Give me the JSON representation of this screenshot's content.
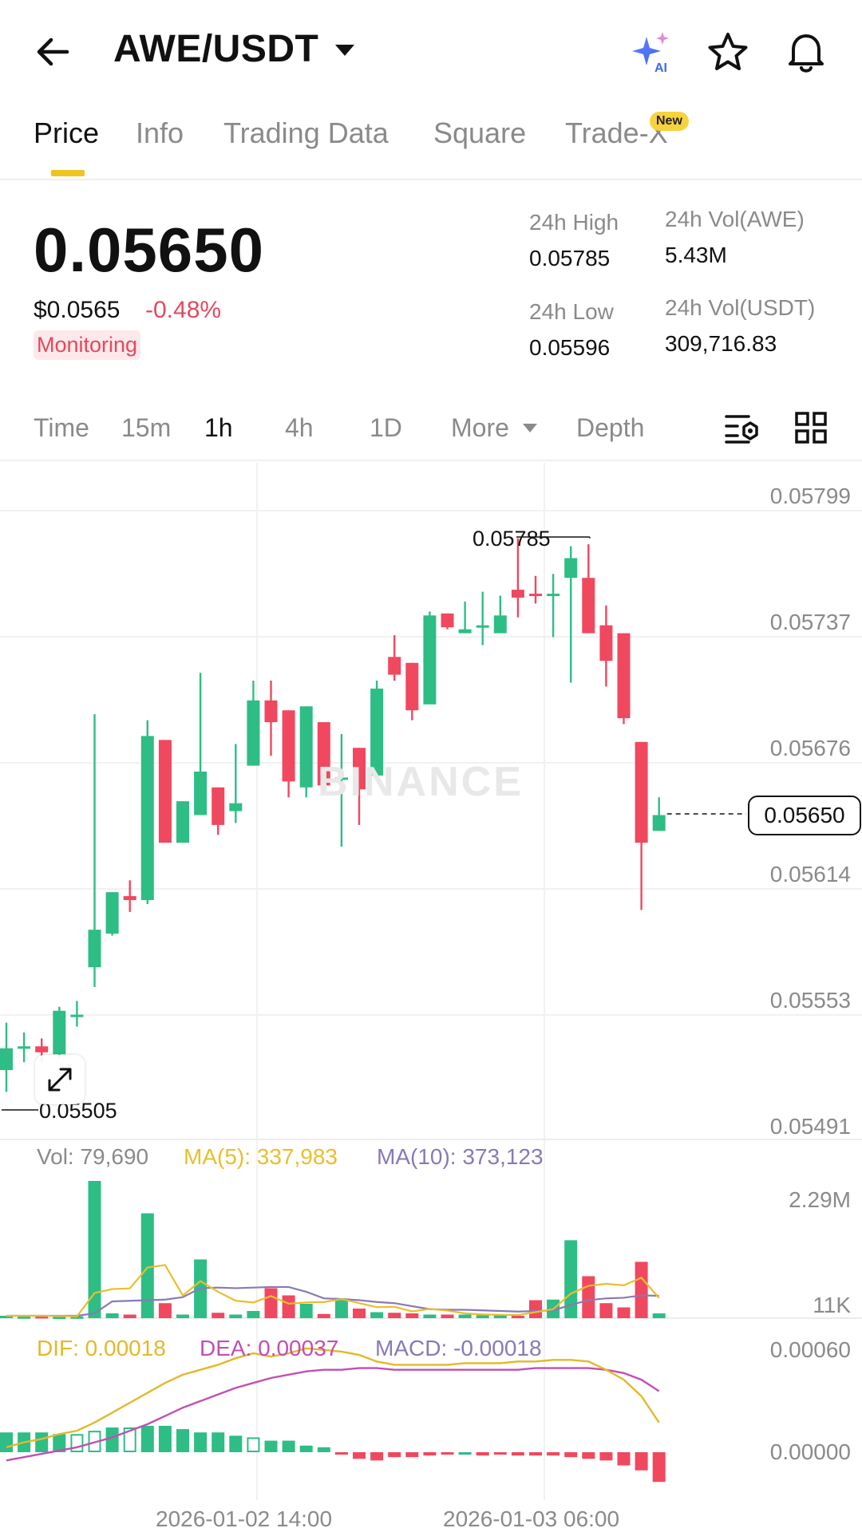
{
  "header": {
    "pair": "AWE/USDT",
    "icons": [
      "back-arrow-icon",
      "caret-down-icon",
      "ai-sparkle-icon",
      "star-icon",
      "bell-icon"
    ]
  },
  "tabs": [
    {
      "label": "Price",
      "active": true
    },
    {
      "label": "Info",
      "active": false
    },
    {
      "label": "Trading Data",
      "active": false
    },
    {
      "label": "Square",
      "active": false
    },
    {
      "label": "Trade-X",
      "active": false,
      "badge": "New"
    }
  ],
  "price": {
    "last": "0.05650",
    "usd": "$0.0565",
    "change": "-0.48%",
    "tag": "Monitoring",
    "high_label": "24h High",
    "high": "0.05785",
    "low_label": "24h Low",
    "low": "0.05596",
    "vol_awe_label": "24h Vol(AWE)",
    "vol_awe": "5.43M",
    "vol_usdt_label": "24h Vol(USDT)",
    "vol_usdt": "309,716.83"
  },
  "intervals": {
    "items": [
      "Time",
      "15m",
      "1h",
      "4h",
      "1D",
      "More",
      "Depth"
    ],
    "active": "1h"
  },
  "chart_data": {
    "type": "candlestick",
    "interval": "1h",
    "y_ticks": [
      "0.05799",
      "0.05737",
      "0.05676",
      "0.05614",
      "0.05553",
      "0.05491"
    ],
    "ylim": [
      0.05491,
      0.05799
    ],
    "high_marker": "0.05785",
    "low_marker": "0.05505",
    "current_price": "0.05650",
    "watermark": "BINANCE",
    "candles": [
      [
        0.05516,
        0.05527,
        0.05505,
        0.0554
      ],
      [
        0.05527,
        0.05528,
        0.0552,
        0.05535
      ],
      [
        0.05528,
        0.05525,
        0.0552,
        0.05532
      ],
      [
        0.05524,
        0.05546,
        0.05522,
        0.05548
      ],
      [
        0.05543,
        0.05544,
        0.05538,
        0.05551
      ],
      [
        0.05568,
        0.05587,
        0.05558,
        0.05696
      ],
      [
        0.05585,
        0.05606,
        0.05584,
        0.05606
      ],
      [
        0.05604,
        0.05602,
        0.05596,
        0.05612
      ],
      [
        0.05602,
        0.05685,
        0.056,
        0.05693
      ],
      [
        0.05683,
        0.05631,
        0.05631,
        0.05683
      ],
      [
        0.05631,
        0.05652,
        0.05631,
        0.05652
      ],
      [
        0.05645,
        0.05667,
        0.05645,
        0.05717
      ],
      [
        0.05659,
        0.0564,
        0.05635,
        0.05659
      ],
      [
        0.05647,
        0.05651,
        0.05641,
        0.05681
      ],
      [
        0.0567,
        0.05703,
        0.0567,
        0.05713
      ],
      [
        0.05703,
        0.05692,
        0.05675,
        0.05713
      ],
      [
        0.05698,
        0.05662,
        0.05654,
        0.05698
      ],
      [
        0.05659,
        0.057,
        0.05654,
        0.057
      ],
      [
        0.05692,
        0.0566,
        0.0566,
        0.05692
      ],
      [
        0.05663,
        0.05664,
        0.05629,
        0.05686
      ],
      [
        0.05679,
        0.05658,
        0.0564,
        0.05679
      ],
      [
        0.05665,
        0.05709,
        0.05665,
        0.05713
      ],
      [
        0.05725,
        0.05716,
        0.05713,
        0.05736
      ],
      [
        0.05722,
        0.05698,
        0.05693,
        0.05722
      ],
      [
        0.05701,
        0.05746,
        0.05701,
        0.05748
      ],
      [
        0.05747,
        0.0574,
        0.05739,
        0.05747
      ],
      [
        0.05737,
        0.05739,
        0.05737,
        0.05753
      ],
      [
        0.0574,
        0.05741,
        0.05731,
        0.05758
      ],
      [
        0.05737,
        0.05746,
        0.05737,
        0.05756
      ],
      [
        0.05759,
        0.05755,
        0.05745,
        0.05785
      ],
      [
        0.05757,
        0.05756,
        0.05752,
        0.05766
      ],
      [
        0.05756,
        0.05757,
        0.05735,
        0.05767
      ],
      [
        0.05765,
        0.05775,
        0.05712,
        0.05781
      ],
      [
        0.05765,
        0.05737,
        0.05737,
        0.05782
      ],
      [
        0.05741,
        0.05723,
        0.0571,
        0.05751
      ],
      [
        0.05737,
        0.05694,
        0.05691,
        0.05737
      ],
      [
        0.05682,
        0.05631,
        0.05597,
        0.05682
      ],
      [
        0.05637,
        0.05645,
        0.05637,
        0.05654
      ]
    ],
    "volume": {
      "label": "Vol: 79,690",
      "ma5_label": "MA(5): 337,983",
      "ma10_label": "MA(10): 373,123",
      "y_ticks": [
        "2.29M",
        "11K"
      ],
      "ylim": [
        11000,
        2290000
      ],
      "bars": [
        40000,
        30000,
        35000,
        25000,
        30000,
        2290000,
        80000,
        60000,
        1750000,
        250000,
        60000,
        980000,
        90000,
        60000,
        120000,
        500000,
        380000,
        240000,
        70000,
        320000,
        160000,
        100000,
        90000,
        80000,
        60000,
        60000,
        60000,
        50000,
        50000,
        40000,
        300000,
        310000,
        1300000,
        700000,
        250000,
        180000,
        940000,
        79690
      ],
      "ma5": [
        40000,
        40000,
        40000,
        35000,
        30000,
        420000,
        485000,
        497000,
        845000,
        886000,
        378000,
        618000,
        440000,
        291000,
        262000,
        368000,
        242000,
        263000,
        270000,
        318000,
        250000,
        184000,
        190000,
        112000,
        155000,
        126000,
        80000,
        62000,
        56000,
        52000,
        100000,
        150000,
        410000,
        540000,
        572000,
        548000,
        674000,
        337983
      ],
      "ma10": [
        40000,
        40000,
        40000,
        40000,
        40000,
        80000,
        280000,
        290000,
        300000,
        310000,
        350000,
        500000,
        510000,
        500000,
        510000,
        520000,
        520000,
        440000,
        330000,
        320000,
        300000,
        270000,
        250000,
        200000,
        150000,
        140000,
        140000,
        130000,
        120000,
        110000,
        120000,
        130000,
        220000,
        300000,
        330000,
        340000,
        380000,
        373123
      ]
    },
    "macd": {
      "dif_label": "DIF: 0.00018",
      "dea_label": "DEA: 0.00037",
      "macd_label": "MACD: -0.00018",
      "y_ticks": [
        "0.00060",
        "0.00000"
      ],
      "ylim": [
        0.0,
        0.0006
      ],
      "dif": [
        3e-05,
        6e-05,
        8e-05,
        0.00011,
        0.00013,
        0.00018,
        0.00024,
        0.0003,
        0.00036,
        0.00042,
        0.00047,
        0.0005,
        0.00053,
        0.00057,
        0.0006,
        0.00058,
        0.0006,
        0.00063,
        0.00062,
        0.00061,
        0.00059,
        0.00055,
        0.00053,
        0.00053,
        0.00053,
        0.00053,
        0.00054,
        0.00054,
        0.00054,
        0.00055,
        0.00055,
        0.00056,
        0.00056,
        0.00055,
        0.0005,
        0.00044,
        0.00034,
        0.00018
      ],
      "dea": [
        -5e-05,
        -3e-05,
        -1e-05,
        1e-05,
        3e-05,
        6e-05,
        9e-05,
        0.00013,
        0.00017,
        0.00022,
        0.00027,
        0.00031,
        0.00035,
        0.00039,
        0.00042,
        0.00045,
        0.00047,
        0.00049,
        0.0005,
        0.0005,
        0.00051,
        0.00051,
        0.0005,
        0.0005,
        0.0005,
        0.0005,
        0.0005,
        0.0005,
        0.0005,
        0.0005,
        0.00051,
        0.00051,
        0.00051,
        0.00051,
        0.0005,
        0.00048,
        0.00044,
        0.00037
      ],
      "hist": [
        0.00012,
        0.00012,
        0.00012,
        0.00011,
        0.00011,
        0.00013,
        0.00015,
        0.00015,
        0.00016,
        0.00016,
        0.00014,
        0.00012,
        0.00012,
        0.0001,
        9e-05,
        7e-05,
        7e-05,
        4e-05,
        3e-05,
        -1e-05,
        -4e-05,
        -5e-05,
        -3e-05,
        -3e-05,
        -2e-05,
        -1e-05,
        0.0,
        -2e-05,
        -1e-05,
        -2e-05,
        -2e-05,
        -2e-05,
        -3e-05,
        -4e-05,
        -5e-05,
        -8e-05,
        -0.00011,
        -0.00018
      ],
      "hollow": [
        false,
        false,
        false,
        false,
        true,
        true,
        false,
        true,
        false,
        false,
        false,
        false,
        false,
        false,
        true,
        false,
        false,
        false,
        false,
        false,
        false,
        true,
        true,
        true,
        true,
        false,
        false,
        false,
        false,
        false,
        false,
        false,
        false,
        false,
        false,
        false,
        false,
        false
      ]
    },
    "x_ticks": [
      {
        "label": "2026-01-02 14:00",
        "index": 14
      },
      {
        "label": "2026-01-03 06:00",
        "index": 30
      }
    ]
  },
  "colors": {
    "up": "#2ebd85",
    "down": "#f0485f",
    "ma5": "#e8bf2c",
    "ma10": "#8a79b6",
    "dif": "#e2b92a",
    "dea": "#c24fb2",
    "accent": "#f0c420"
  }
}
